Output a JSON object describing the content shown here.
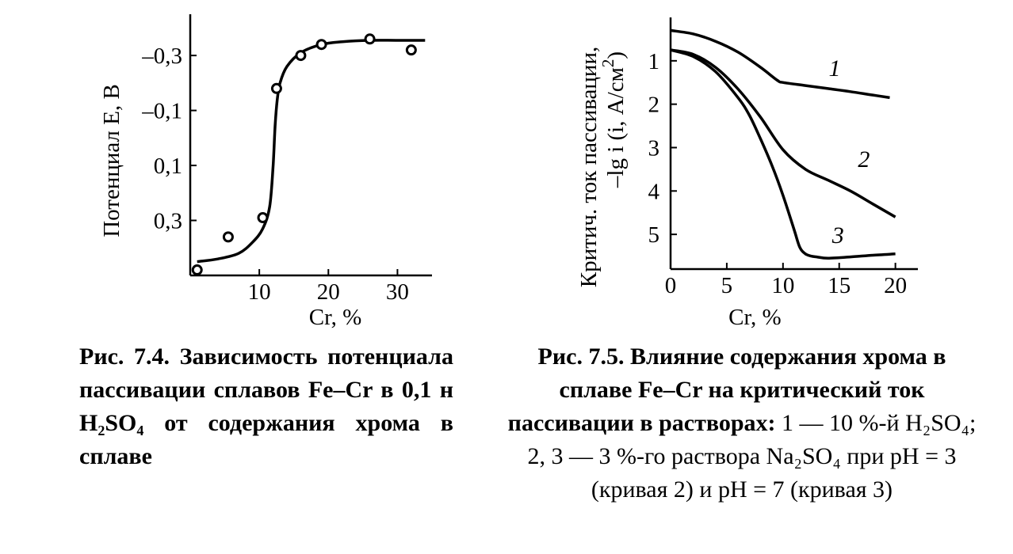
{
  "chart_data": [
    {
      "type": "line",
      "xlabel": "Cr, %",
      "ylabel": "Потенциал E, В",
      "xlim": [
        0,
        35
      ],
      "ylim": [
        0.5,
        -0.45
      ],
      "y_inverted": true,
      "x_tick_labels": [
        "10",
        "20",
        "30"
      ],
      "x_ticks": [
        10,
        20,
        30
      ],
      "y_tick_labels": [
        "–0,3",
        "–0,1",
        "0,1",
        "0,3"
      ],
      "y_ticks": [
        -0.3,
        -0.1,
        0.1,
        0.3
      ],
      "series": [
        {
          "style": "markers",
          "x": [
            1,
            5.5,
            10.5,
            12.5,
            16,
            19,
            26,
            32
          ],
          "y": [
            0.48,
            0.36,
            0.29,
            -0.18,
            -0.3,
            -0.34,
            -0.36,
            -0.32
          ]
        },
        {
          "style": "curve",
          "x": [
            1,
            4,
            7,
            9,
            10.5,
            11.5,
            12,
            12.3,
            12.6,
            13,
            14,
            16,
            19,
            22,
            26,
            30,
            34
          ],
          "y": [
            0.45,
            0.44,
            0.42,
            0.38,
            0.33,
            0.25,
            0.1,
            -0.05,
            -0.14,
            -0.2,
            -0.26,
            -0.31,
            -0.34,
            -0.35,
            -0.355,
            -0.355,
            -0.355
          ]
        }
      ]
    },
    {
      "type": "line",
      "xlabel": "Cr, %",
      "ylabel_line1": "Критич. ток пассивации,",
      "ylabel_line2": "–lg i (i, А/см",
      "ylabel_sup": "2",
      "ylabel_end": ")",
      "xlim": [
        0,
        22
      ],
      "ylim": [
        0,
        5.8
      ],
      "y_inverted": true,
      "x_tick_labels": [
        "0",
        "5",
        "10",
        "15",
        "20"
      ],
      "x_ticks": [
        0,
        5,
        10,
        15,
        20
      ],
      "y_tick_labels": [
        "1",
        "2",
        "3",
        "4",
        "5"
      ],
      "y_ticks": [
        1,
        2,
        3,
        4,
        5
      ],
      "series": [
        {
          "label": "1",
          "x": [
            0,
            2,
            4,
            6,
            8,
            9.5,
            10,
            12,
            14,
            16,
            18,
            19.5
          ],
          "y": [
            0.3,
            0.38,
            0.55,
            0.8,
            1.15,
            1.45,
            1.5,
            1.57,
            1.64,
            1.71,
            1.79,
            1.85
          ],
          "label_at": [
            14.6,
            1.35
          ]
        },
        {
          "label": "2",
          "x": [
            0,
            2,
            4,
            6,
            8,
            10,
            12,
            14,
            16,
            18,
            20
          ],
          "y": [
            0.75,
            0.85,
            1.15,
            1.65,
            2.3,
            3.05,
            3.5,
            3.75,
            4.0,
            4.3,
            4.6
          ],
          "label_at": [
            17.2,
            3.45
          ]
        },
        {
          "label": "3",
          "x": [
            0,
            2,
            4,
            6,
            7,
            8,
            9,
            10,
            11,
            11.5,
            12,
            12.5,
            13,
            14,
            16,
            18,
            20
          ],
          "y": [
            0.75,
            0.9,
            1.25,
            1.85,
            2.25,
            2.8,
            3.4,
            4.1,
            4.9,
            5.3,
            5.45,
            5.5,
            5.52,
            5.55,
            5.52,
            5.48,
            5.45
          ],
          "label_at": [
            14.9,
            5.2
          ]
        }
      ]
    }
  ],
  "captions": {
    "fig1": "Рис.   7.4. Зависимость потенциала пассивации сплавов Fe–Cr в 0,1 н H₂SO₄ от содержания хрома в сплаве",
    "fig2_bold": "Рис. 7.5. Влияние содержания хрома в сплаве Fe–Cr на критический ток пассивации в растворах:",
    "fig2_normal": "1 — 10 %-й H₂SO₄; 2, 3 — 3 %-го раствора Na₂SO₄ при pH = 3 (кривая 2) и pH = 7 (кривая 3)"
  }
}
